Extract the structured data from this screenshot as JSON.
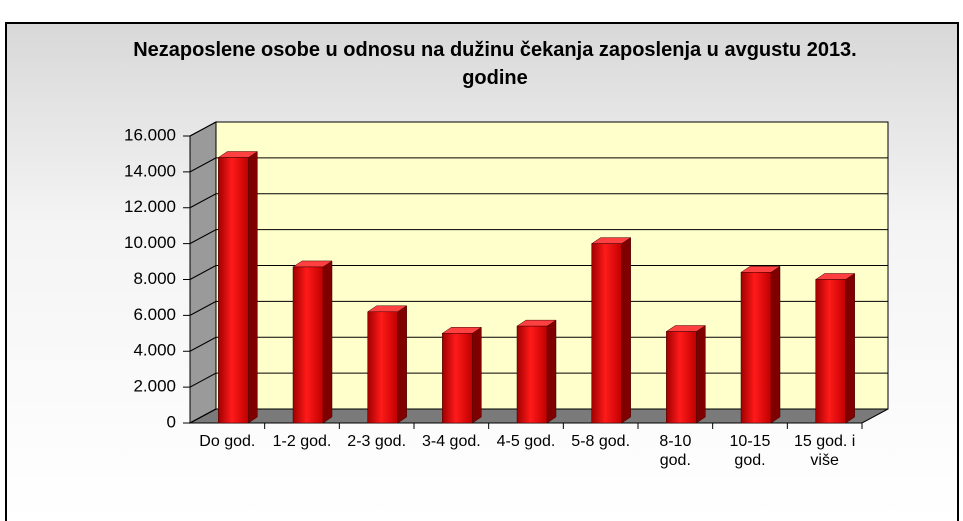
{
  "chart_data": {
    "type": "bar",
    "title": "Nezaposlene osobe u odnosu na dužinu čekanja zaposlenja u avgustu 2013. godine",
    "categories": [
      "Do god.",
      "1-2 god.",
      "2-3 god.",
      "3-4 god.",
      "4-5 god.",
      "5-8 god.",
      "8-10 god.",
      "10-15 god.",
      "15 god. i više"
    ],
    "values": [
      14800,
      8700,
      6200,
      5000,
      5400,
      10000,
      5100,
      8400,
      8000
    ],
    "color": "#e00000",
    "ylim": [
      0,
      16000
    ],
    "yticks": [
      0,
      {
        "value": 2000,
        "label": "2.000"
      },
      {
        "value": 4000,
        "label": "4.000"
      },
      {
        "value": 6000,
        "label": "6.000"
      },
      {
        "value": 8000,
        "label": "8.000"
      },
      {
        "value": 10000,
        "label": "10.000"
      },
      {
        "value": 12000,
        "label": "12.000"
      },
      {
        "value": 14000,
        "label": "14.000"
      },
      {
        "value": 16000,
        "label": "16.000"
      }
    ],
    "grid": true
  }
}
